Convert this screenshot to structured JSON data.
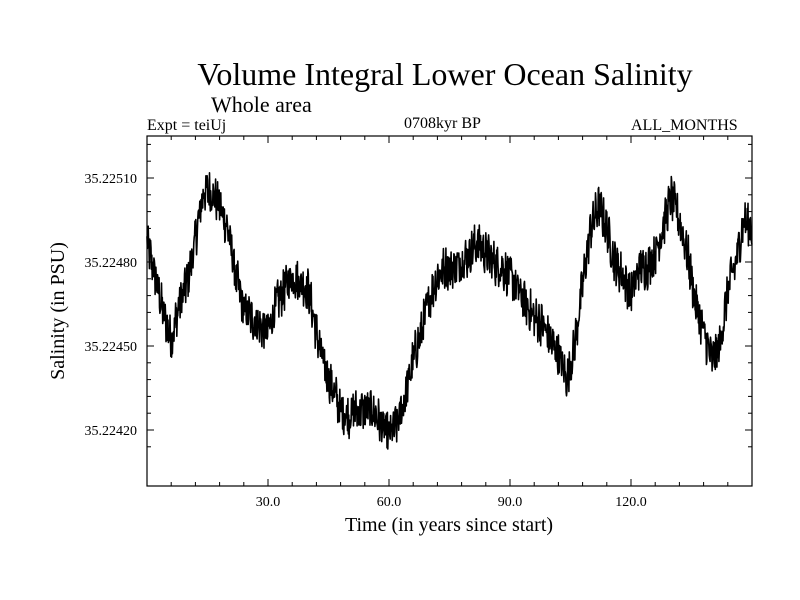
{
  "chart_data": {
    "type": "line",
    "title": "Volume Integral Lower Ocean Salinity",
    "subtitle": "Whole area",
    "experiment": "Expt = teiUj",
    "period": "0708kyr BP",
    "months": "ALL_MONTHS",
    "xlabel": "Time (in years since start)",
    "ylabel": "Salinity (in PSU)",
    "xlim": [
      0,
      150
    ],
    "ylim": [
      35.224,
      35.22525
    ],
    "xticks": [
      30,
      60,
      90,
      120
    ],
    "xtick_labels": [
      "30.0",
      "60.0",
      "90.0",
      "120.0"
    ],
    "yticks": [
      35.2242,
      35.2245,
      35.2248,
      35.2251
    ],
    "ytick_labels": [
      "35.22420",
      "35.22450",
      "35.22480",
      "35.22510"
    ],
    "series": [
      {
        "name": "salinity",
        "x": [
          0,
          2,
          4,
          6,
          8,
          10,
          12,
          14,
          16,
          18,
          20,
          22,
          24,
          26,
          28,
          30,
          32,
          34,
          36,
          38,
          40,
          42,
          44,
          46,
          48,
          50,
          52,
          54,
          56,
          58,
          60,
          62,
          64,
          66,
          68,
          70,
          72,
          74,
          76,
          78,
          80,
          82,
          84,
          86,
          88,
          90,
          92,
          94,
          96,
          98,
          100,
          102,
          104,
          106,
          108,
          110,
          112,
          114,
          116,
          118,
          120,
          122,
          124,
          126,
          128,
          130,
          132,
          134,
          136,
          138,
          140,
          142,
          144,
          146,
          148,
          150
        ],
        "values": [
          35.22487,
          35.22475,
          35.22462,
          35.22452,
          35.22465,
          35.22473,
          35.22488,
          35.22505,
          35.22505,
          35.225,
          35.22492,
          35.22475,
          35.22463,
          35.2246,
          35.22457,
          35.22455,
          35.22465,
          35.2247,
          35.22475,
          35.22473,
          35.2247,
          35.22455,
          35.22442,
          35.22435,
          35.22427,
          35.22425,
          35.22427,
          35.22427,
          35.22427,
          35.22422,
          35.22418,
          35.22422,
          35.22432,
          35.22445,
          35.22455,
          35.22467,
          35.22475,
          35.22478,
          35.22478,
          35.2248,
          35.22483,
          35.22487,
          35.22483,
          35.2248,
          35.22478,
          35.22475,
          35.2247,
          35.22465,
          35.2246,
          35.22458,
          35.22452,
          35.22447,
          35.22438,
          35.2245,
          35.22472,
          35.22492,
          35.225,
          35.22492,
          35.2248,
          35.22475,
          35.22468,
          35.22478,
          35.22478,
          35.22483,
          35.22493,
          35.22503,
          35.22495,
          35.22483,
          35.22465,
          35.22455,
          35.22445,
          35.2245,
          35.2247,
          35.2248,
          35.22495,
          35.22492
        ]
      }
    ]
  }
}
